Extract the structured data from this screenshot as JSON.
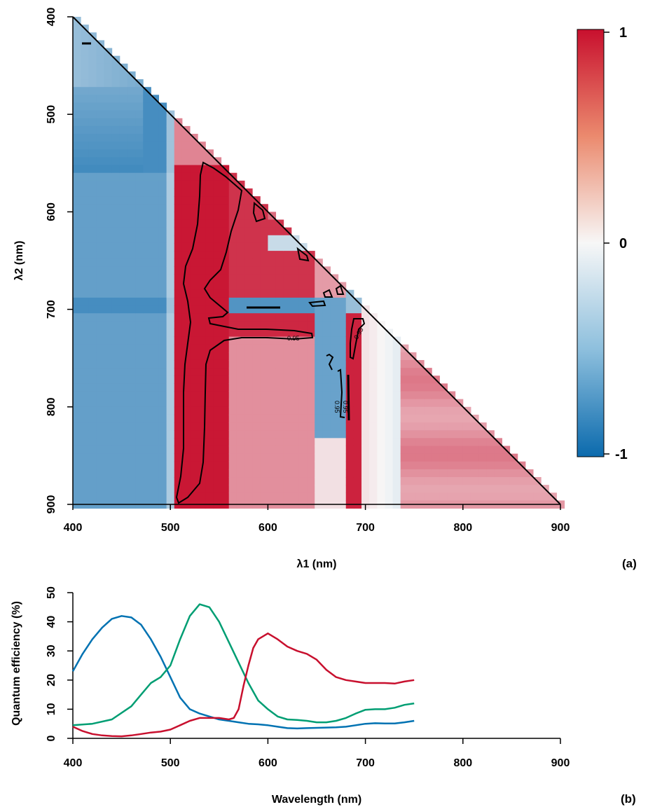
{
  "figure": {
    "panel_a_tag": "(a)",
    "panel_b_tag": "(b)"
  },
  "chart_data": [
    {
      "type": "heatmap",
      "panel": "(a)",
      "xlabel": "λ1 (nm)",
      "ylabel": "λ2 (nm)",
      "xlim": [
        400,
        900
      ],
      "ylim": [
        900,
        400
      ],
      "x_ticks": [
        "400",
        "500",
        "600",
        "700",
        "800",
        "900"
      ],
      "y_ticks": [
        "400",
        "500",
        "600",
        "700",
        "800",
        "900"
      ],
      "y_axis_inverted": true,
      "value_range": [
        -1,
        1
      ],
      "colorbar": {
        "ticks": [
          "1",
          "0",
          "-1"
        ],
        "low_color": "#0b6aad",
        "mid_color": "#f7f7f7",
        "high_color": "#c8102e"
      },
      "mask": "lower triangle (λ2 >= λ1)",
      "approx_structure": {
        "blue_band_lambda1_range": [
          400,
          508
        ],
        "red_band_lambda1_range": [
          510,
          560
        ],
        "red_band_lambda2_range": [
          550,
          900
        ],
        "horizontal_blue_band_lambda2": 697,
        "vertical_blue_band_lambda1": 670,
        "vertical_red_band_lambda1": 688
      },
      "contours": [
        {
          "level": "0.95",
          "label_position": [
            648,
            726
          ]
        },
        {
          "level": "0.95",
          "label_position": [
            698,
            726
          ]
        },
        {
          "level": "0.95",
          "label_position": [
            673,
            790
          ]
        },
        {
          "level": "0.95",
          "label_position": [
            684,
            790
          ]
        }
      ]
    },
    {
      "type": "line",
      "panel": "(b)",
      "xlabel": "Wavelength (nm)",
      "ylabel": "Quantum efficiency (%)",
      "xlim": [
        400,
        900
      ],
      "ylim": [
        0,
        50
      ],
      "x_ticks": [
        "400",
        "500",
        "600",
        "700",
        "800",
        "900"
      ],
      "y_ticks": [
        "0",
        "10",
        "20",
        "30",
        "40",
        "50"
      ],
      "series": [
        {
          "color": "#0072b2",
          "points": [
            [
              400,
              23
            ],
            [
              410,
              29
            ],
            [
              420,
              34
            ],
            [
              430,
              38
            ],
            [
              440,
              41
            ],
            [
              450,
              42
            ],
            [
              460,
              41.5
            ],
            [
              470,
              39
            ],
            [
              480,
              34
            ],
            [
              490,
              28
            ],
            [
              500,
              21
            ],
            [
              510,
              14
            ],
            [
              520,
              10
            ],
            [
              530,
              8.5
            ],
            [
              540,
              7.5
            ],
            [
              550,
              6.5
            ],
            [
              560,
              6
            ],
            [
              570,
              5.5
            ],
            [
              580,
              5
            ],
            [
              590,
              4.8
            ],
            [
              600,
              4.5
            ],
            [
              610,
              4
            ],
            [
              620,
              3.5
            ],
            [
              630,
              3.4
            ],
            [
              640,
              3.5
            ],
            [
              650,
              3.6
            ],
            [
              660,
              3.7
            ],
            [
              670,
              3.8
            ],
            [
              680,
              4
            ],
            [
              690,
              4.5
            ],
            [
              700,
              5
            ],
            [
              710,
              5.2
            ],
            [
              720,
              5.1
            ],
            [
              730,
              5.1
            ],
            [
              740,
              5.5
            ],
            [
              750,
              6
            ]
          ]
        },
        {
          "color": "#009e73",
          "points": [
            [
              400,
              4.5
            ],
            [
              420,
              5
            ],
            [
              440,
              6.5
            ],
            [
              460,
              11
            ],
            [
              470,
              15
            ],
            [
              480,
              19
            ],
            [
              490,
              21
            ],
            [
              500,
              25
            ],
            [
              510,
              34
            ],
            [
              520,
              42
            ],
            [
              530,
              46
            ],
            [
              540,
              45
            ],
            [
              550,
              40
            ],
            [
              560,
              33
            ],
            [
              570,
              26
            ],
            [
              580,
              19
            ],
            [
              590,
              13
            ],
            [
              600,
              10
            ],
            [
              610,
              7.5
            ],
            [
              620,
              6.5
            ],
            [
              630,
              6.3
            ],
            [
              640,
              6
            ],
            [
              650,
              5.5
            ],
            [
              660,
              5.5
            ],
            [
              670,
              6
            ],
            [
              680,
              7
            ],
            [
              690,
              8.5
            ],
            [
              700,
              9.8
            ],
            [
              710,
              10
            ],
            [
              720,
              10
            ],
            [
              730,
              10.5
            ],
            [
              740,
              11.5
            ],
            [
              750,
              12
            ]
          ]
        },
        {
          "color": "#c8102e",
          "points": [
            [
              400,
              4
            ],
            [
              410,
              2.5
            ],
            [
              420,
              1.5
            ],
            [
              430,
              1
            ],
            [
              440,
              0.8
            ],
            [
              450,
              0.7
            ],
            [
              460,
              1
            ],
            [
              470,
              1.5
            ],
            [
              480,
              2
            ],
            [
              490,
              2.3
            ],
            [
              500,
              3
            ],
            [
              510,
              4.5
            ],
            [
              520,
              6
            ],
            [
              530,
              7
            ],
            [
              540,
              7
            ],
            [
              550,
              7
            ],
            [
              560,
              6.5
            ],
            [
              565,
              7
            ],
            [
              570,
              10
            ],
            [
              575,
              18
            ],
            [
              580,
              25
            ],
            [
              585,
              31
            ],
            [
              590,
              34
            ],
            [
              600,
              36
            ],
            [
              610,
              34
            ],
            [
              620,
              31.5
            ],
            [
              630,
              30
            ],
            [
              640,
              29
            ],
            [
              650,
              27
            ],
            [
              660,
              23.5
            ],
            [
              670,
              21
            ],
            [
              680,
              20
            ],
            [
              690,
              19.5
            ],
            [
              700,
              19
            ],
            [
              710,
              19
            ],
            [
              720,
              19
            ],
            [
              730,
              18.8
            ],
            [
              740,
              19.5
            ],
            [
              750,
              20
            ]
          ]
        }
      ]
    }
  ]
}
